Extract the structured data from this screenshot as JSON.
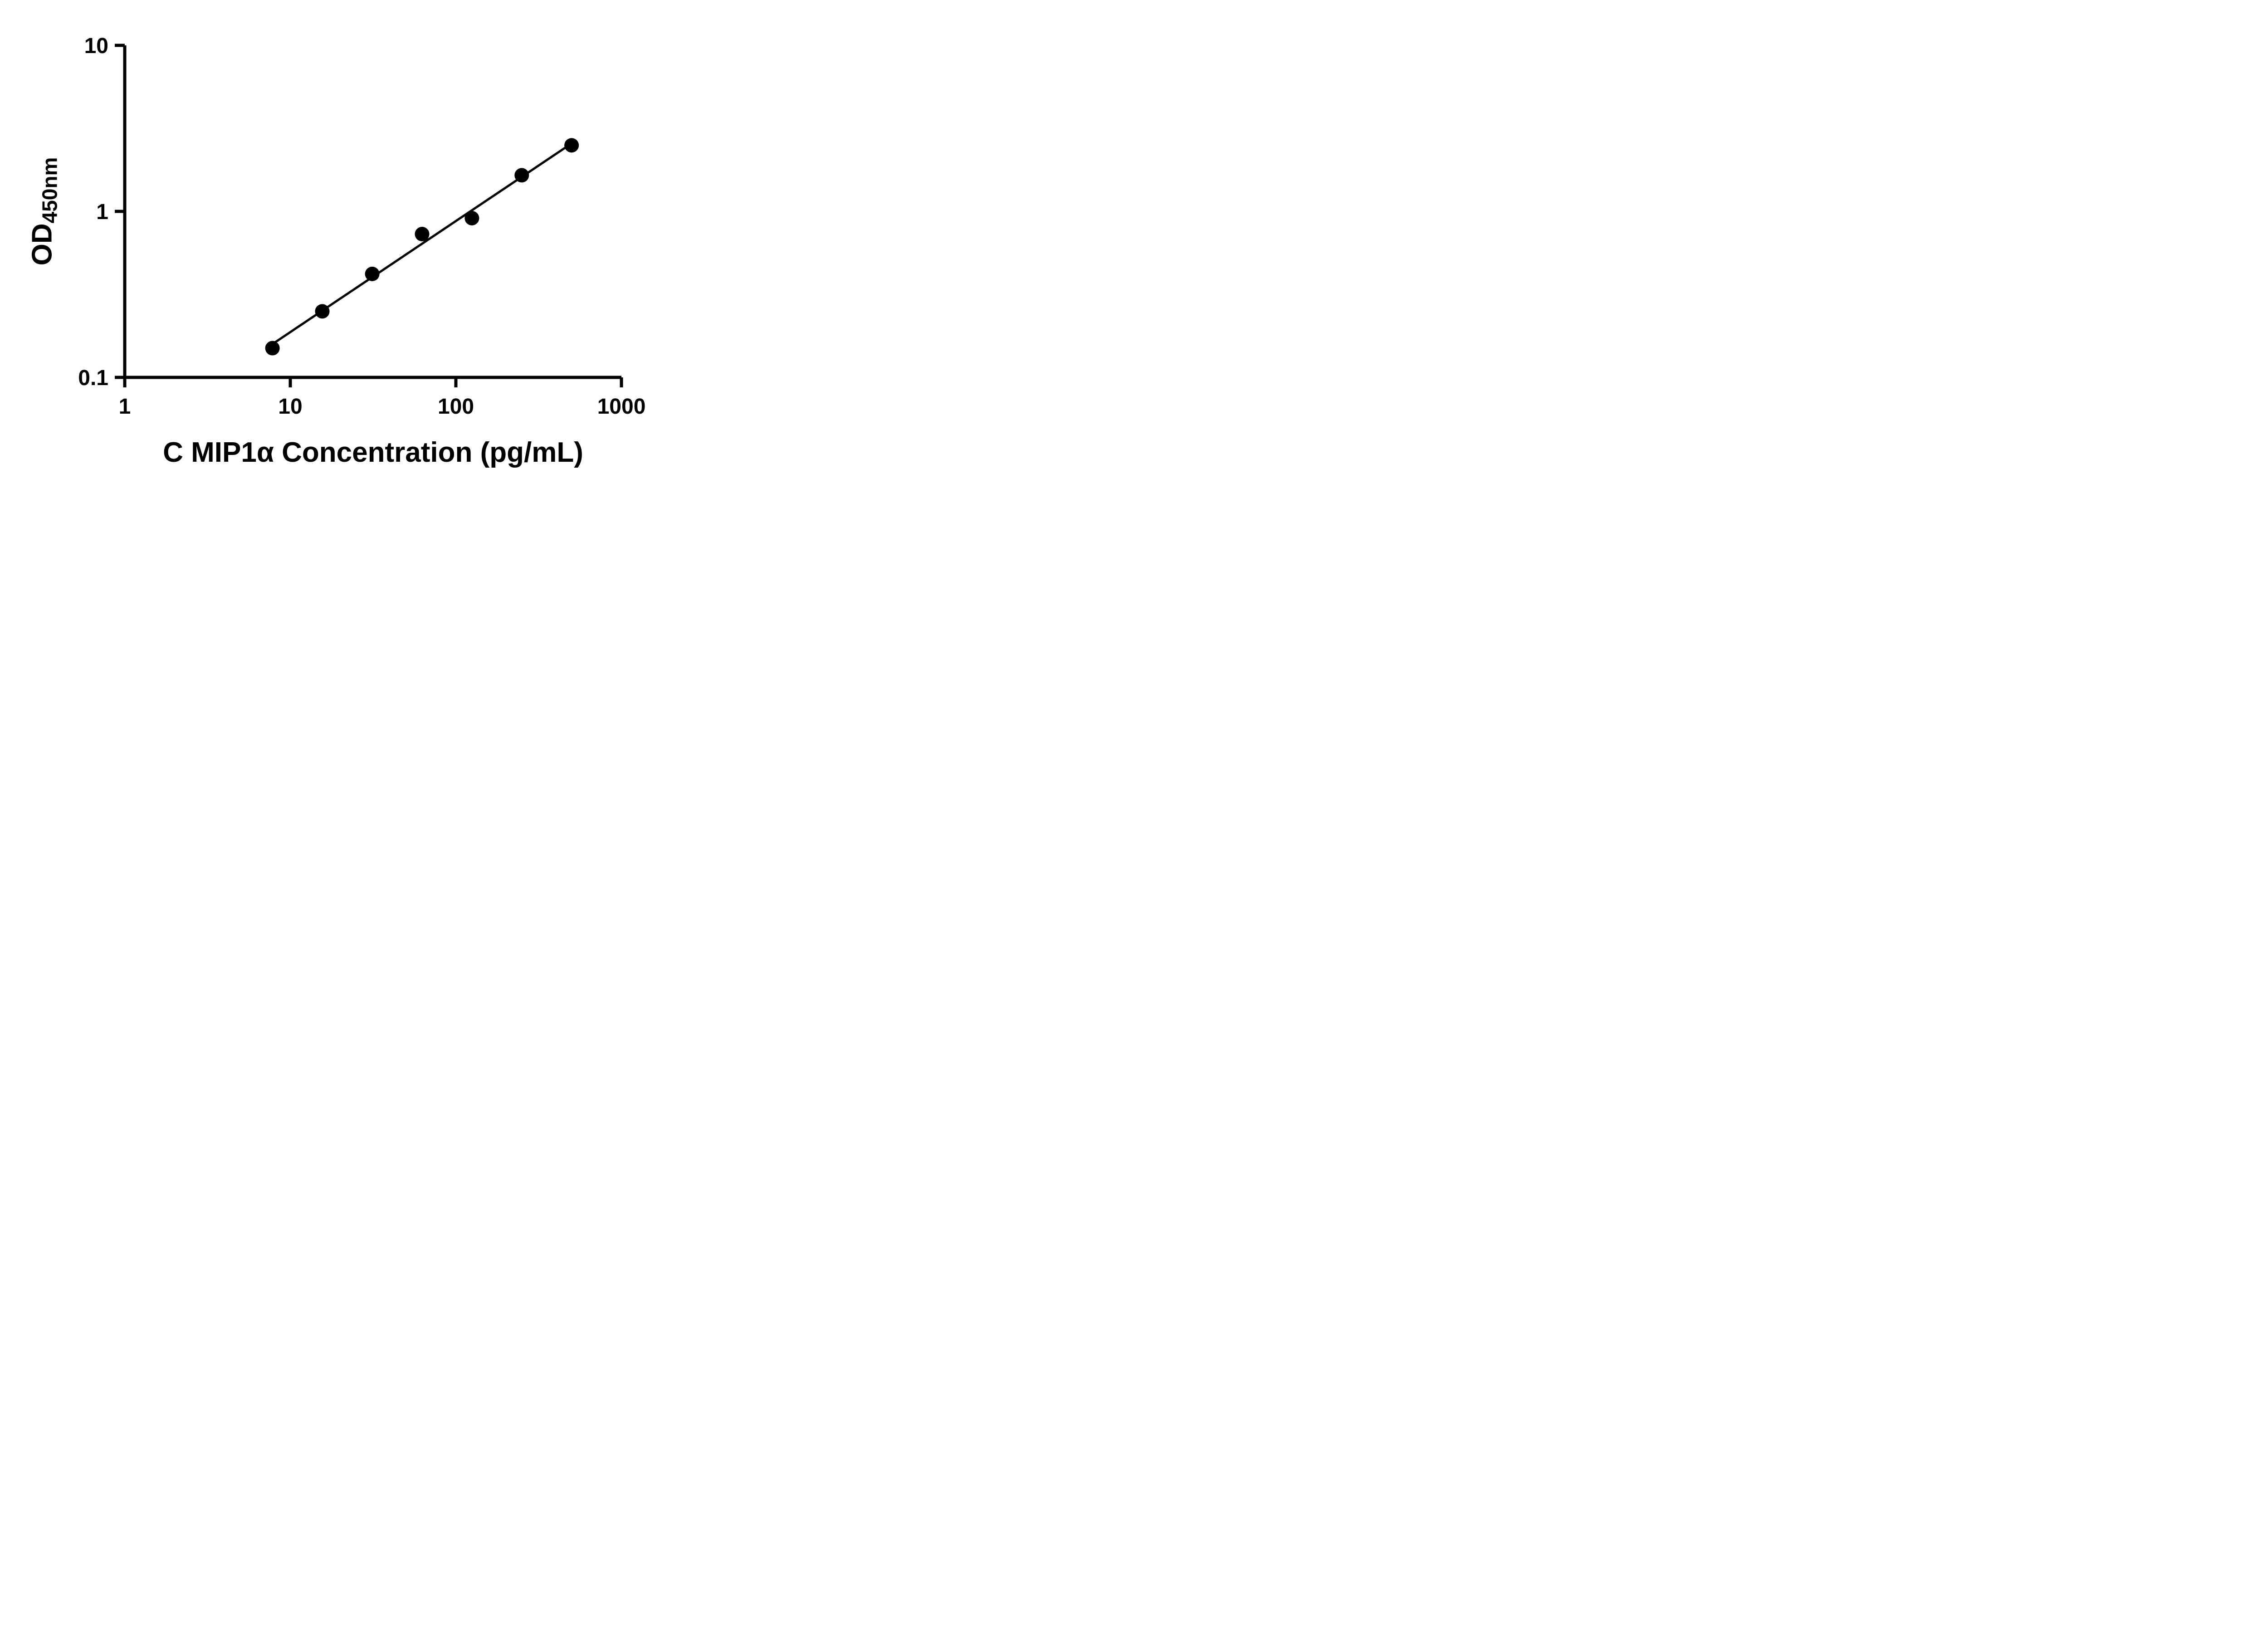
{
  "chart_data": {
    "type": "scatter",
    "title": "",
    "xlabel": "C MIP1α Concentration (pg/mL)",
    "ylabel_base": "OD",
    "ylabel_sub": "450nm",
    "x_scale": "log",
    "y_scale": "log",
    "xlim": [
      1,
      1000
    ],
    "ylim": [
      0.1,
      10
    ],
    "grid": false,
    "legend": null,
    "x_ticks": [
      {
        "value": 1,
        "label": "1"
      },
      {
        "value": 10,
        "label": "10"
      },
      {
        "value": 100,
        "label": "100"
      },
      {
        "value": 1000,
        "label": "1000"
      }
    ],
    "y_ticks": [
      {
        "value": 0.1,
        "label": "0.1"
      },
      {
        "value": 1,
        "label": "1"
      },
      {
        "value": 10,
        "label": "10"
      }
    ],
    "points": [
      {
        "x": 7.8,
        "y": 0.15
      },
      {
        "x": 15.6,
        "y": 0.25
      },
      {
        "x": 31.25,
        "y": 0.42
      },
      {
        "x": 62.5,
        "y": 0.73
      },
      {
        "x": 125,
        "y": 0.91
      },
      {
        "x": 250,
        "y": 1.65
      },
      {
        "x": 500,
        "y": 2.5
      }
    ],
    "trendline": "linear fit in log-log space through data points",
    "marker_color": "#000000",
    "line_color": "#000000",
    "axis_color": "#000000",
    "background_color": "#ffffff"
  }
}
